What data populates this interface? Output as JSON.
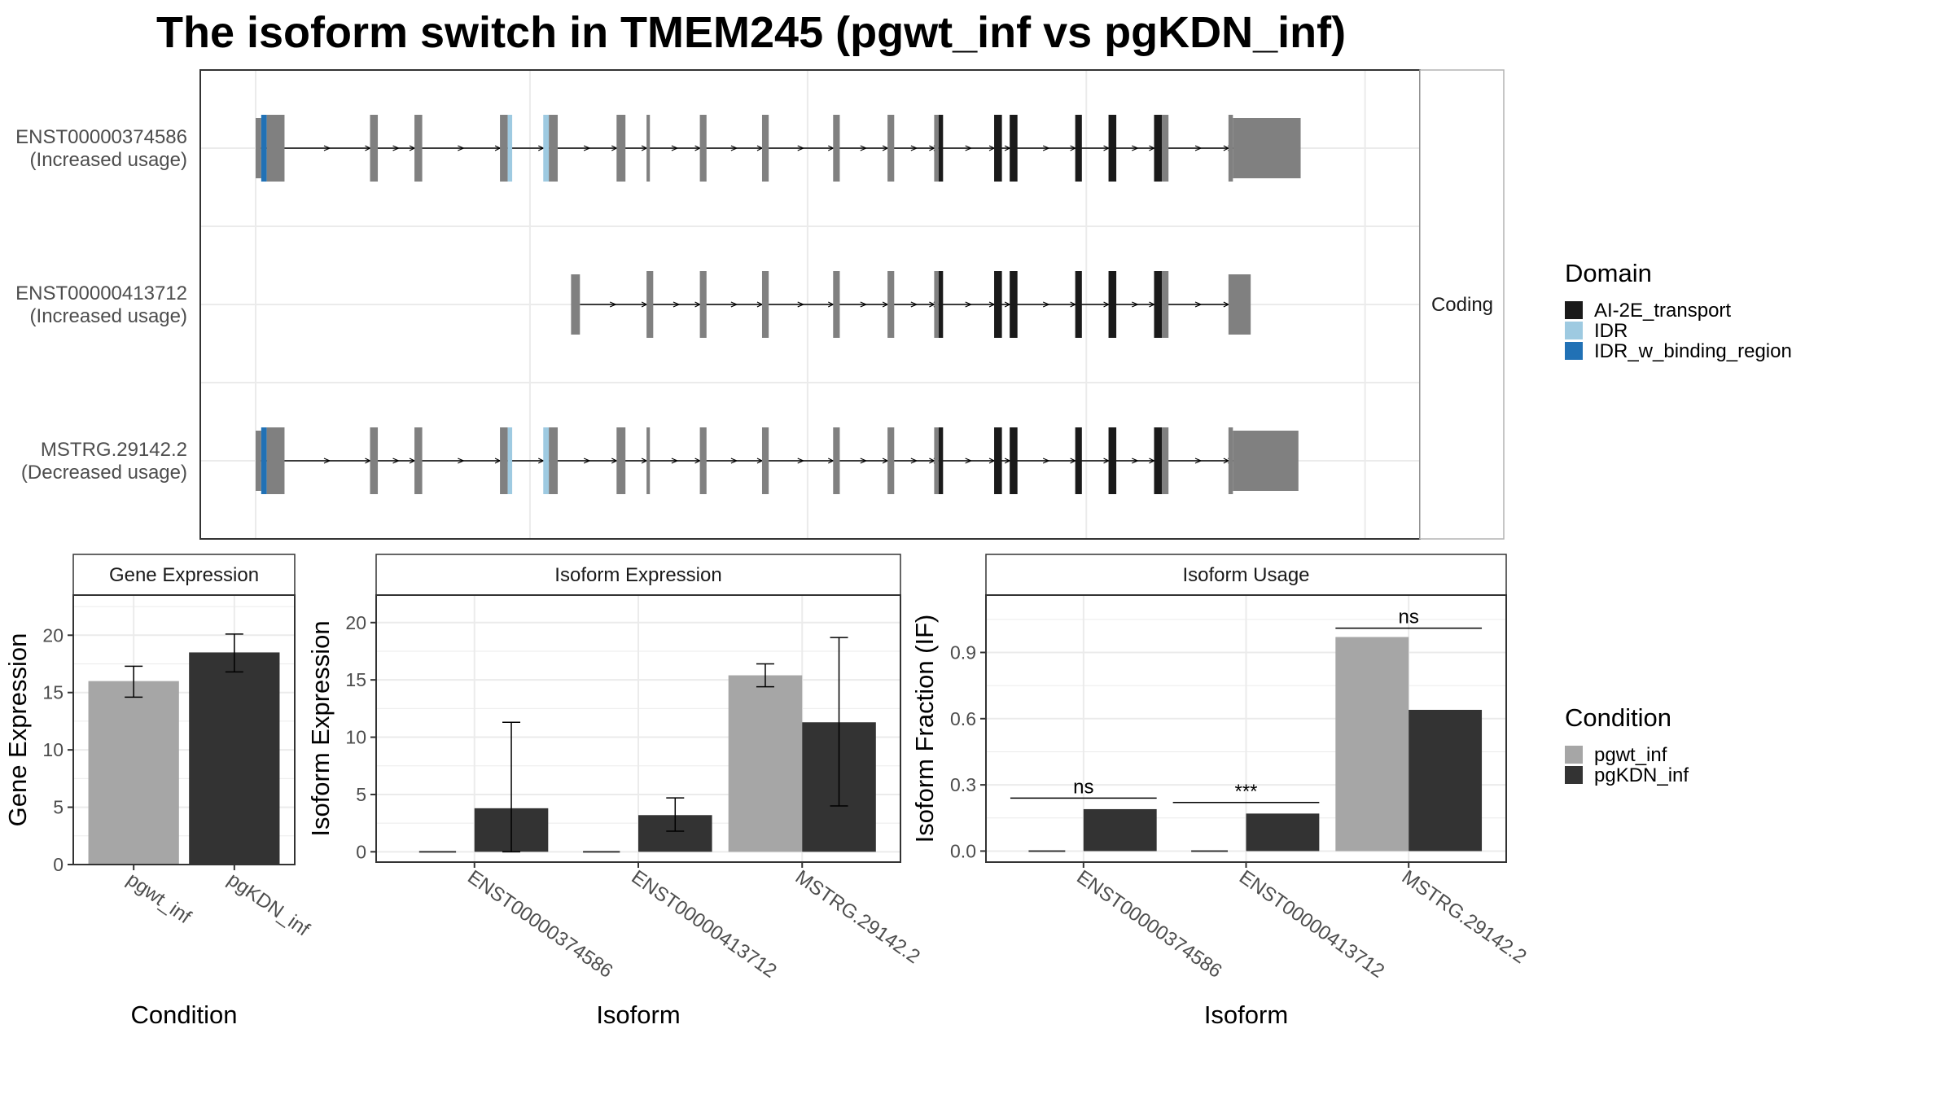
{
  "title": "The isoform switch in TMEM245 (pgwt_inf vs pgKDN_inf)",
  "colors": {
    "exon": "#808080",
    "ai2e": "#1a1a1a",
    "idr": "#9ecae1",
    "idr_binding": "#2171b5",
    "cond1": "#a6a6a6",
    "cond2": "#333333"
  },
  "structure_panel": {
    "strip_label": "Coding",
    "isoforms": [
      {
        "id": "ENST00000374586",
        "usage": "(Increased usage)",
        "exons": [
          [
            0,
            0.5,
            "exon"
          ],
          [
            0.5,
            1,
            "idr_binding"
          ],
          [
            1,
            2.6,
            "exon"
          ],
          [
            10.3,
            11,
            "exon"
          ],
          [
            14.3,
            15,
            "exon"
          ],
          [
            22,
            22.7,
            "exon"
          ],
          [
            22.7,
            23.1,
            "idr"
          ],
          [
            25.9,
            26.4,
            "idr"
          ],
          [
            26.4,
            27.2,
            "exon"
          ],
          [
            32.5,
            33.3,
            "exon"
          ],
          [
            35.2,
            35.5,
            "exon"
          ],
          [
            40,
            40.6,
            "exon"
          ],
          [
            45.6,
            46.2,
            "exon"
          ],
          [
            52,
            52.6,
            "exon"
          ],
          [
            56.9,
            57.5,
            "exon"
          ],
          [
            61.1,
            61.5,
            "exon"
          ],
          [
            61.5,
            61.9,
            "ai2e"
          ],
          [
            66.5,
            67.2,
            "ai2e"
          ],
          [
            67.9,
            68.6,
            "ai2e"
          ],
          [
            73.8,
            74.4,
            "ai2e"
          ],
          [
            76.8,
            77.5,
            "ai2e"
          ],
          [
            80.9,
            81.6,
            "ai2e"
          ],
          [
            81.6,
            82.2,
            "exon"
          ],
          [
            87.6,
            88,
            "exon"
          ],
          [
            88,
            94.1,
            "exon_utr"
          ]
        ]
      },
      {
        "id": "ENST00000413712",
        "usage": "(Increased usage)",
        "exons": [
          [
            28.4,
            29.2,
            "exon_small"
          ],
          [
            35.2,
            35.8,
            "exon"
          ],
          [
            40,
            40.6,
            "exon"
          ],
          [
            45.6,
            46.2,
            "exon"
          ],
          [
            52,
            52.6,
            "exon"
          ],
          [
            56.9,
            57.5,
            "exon"
          ],
          [
            61.1,
            61.5,
            "exon"
          ],
          [
            61.5,
            61.9,
            "ai2e"
          ],
          [
            66.5,
            67.2,
            "ai2e"
          ],
          [
            67.9,
            68.6,
            "ai2e"
          ],
          [
            73.8,
            74.4,
            "ai2e"
          ],
          [
            76.8,
            77.5,
            "ai2e"
          ],
          [
            80.9,
            81.6,
            "ai2e"
          ],
          [
            81.6,
            82.2,
            "exon"
          ],
          [
            87.6,
            89.6,
            "exon_small"
          ]
        ]
      },
      {
        "id": "MSTRG.29142.2",
        "usage": "(Decreased usage)",
        "exons": [
          [
            0,
            0.5,
            "exon"
          ],
          [
            0.5,
            1,
            "idr_binding"
          ],
          [
            1,
            2.6,
            "exon"
          ],
          [
            10.3,
            11,
            "exon"
          ],
          [
            14.3,
            15,
            "exon"
          ],
          [
            22,
            22.7,
            "exon"
          ],
          [
            22.7,
            23.1,
            "idr"
          ],
          [
            25.9,
            26.4,
            "idr"
          ],
          [
            26.4,
            27.2,
            "exon"
          ],
          [
            32.5,
            33.3,
            "exon"
          ],
          [
            35.2,
            35.5,
            "exon"
          ],
          [
            40,
            40.6,
            "exon"
          ],
          [
            45.6,
            46.2,
            "exon"
          ],
          [
            52,
            52.6,
            "exon"
          ],
          [
            56.9,
            57.5,
            "exon"
          ],
          [
            61.1,
            61.5,
            "exon"
          ],
          [
            61.5,
            61.9,
            "ai2e"
          ],
          [
            66.5,
            67.2,
            "ai2e"
          ],
          [
            67.9,
            68.6,
            "ai2e"
          ],
          [
            73.8,
            74.4,
            "ai2e"
          ],
          [
            76.8,
            77.5,
            "ai2e"
          ],
          [
            80.9,
            81.6,
            "ai2e"
          ],
          [
            81.6,
            82.2,
            "exon"
          ],
          [
            87.6,
            88,
            "exon"
          ],
          [
            88,
            93.9,
            "exon_utr"
          ]
        ]
      }
    ]
  },
  "domain_legend": {
    "title": "Domain",
    "entries": [
      {
        "label": "AI-2E_transport",
        "color_key": "ai2e"
      },
      {
        "label": "IDR",
        "color_key": "idr"
      },
      {
        "label": "IDR_w_binding_region",
        "color_key": "idr_binding"
      }
    ]
  },
  "condition_legend": {
    "title": "Condition",
    "entries": [
      {
        "label": "pgwt_inf",
        "color_key": "cond1"
      },
      {
        "label": "pgKDN_inf",
        "color_key": "cond2"
      }
    ]
  },
  "chart_data": [
    {
      "type": "bar",
      "panel": "Gene Expression",
      "xlabel": "Condition",
      "ylabel": "Gene Expression",
      "categories": [
        "pgwt_inf",
        "pgKDN_inf"
      ],
      "values": [
        16.0,
        18.5
      ],
      "err_low": [
        14.6,
        16.8
      ],
      "err_high": [
        17.3,
        20.1
      ],
      "ylim": [
        0,
        23.5
      ],
      "yticks": [
        0,
        5,
        10,
        15,
        20
      ]
    },
    {
      "type": "bar",
      "panel": "Isoform Expression",
      "xlabel": "Isoform",
      "ylabel": "Isoform Expression",
      "categories": [
        "ENST00000374586",
        "ENST00000413712",
        "MSTRG.29142.2"
      ],
      "series": [
        {
          "name": "pgwt_inf",
          "values": [
            0,
            0,
            15.4
          ],
          "err_low": [
            0,
            0,
            14.4
          ],
          "err_high": [
            0,
            0,
            16.4
          ]
        },
        {
          "name": "pgKDN_inf",
          "values": [
            3.8,
            3.2,
            11.3
          ],
          "err_low": [
            0.0,
            1.8,
            4.0
          ],
          "err_high": [
            11.3,
            4.7,
            18.7
          ]
        }
      ],
      "ylim": [
        -0.9,
        22.4
      ],
      "yticks": [
        0,
        5,
        10,
        15,
        20
      ]
    },
    {
      "type": "bar",
      "panel": "Isoform Usage",
      "xlabel": "Isoform",
      "ylabel": "Isoform Fraction (IF)",
      "categories": [
        "ENST00000374586",
        "ENST00000413712",
        "MSTRG.29142.2"
      ],
      "series": [
        {
          "name": "pgwt_inf",
          "values": [
            0,
            0,
            0.97
          ]
        },
        {
          "name": "pgKDN_inf",
          "values": [
            0.19,
            0.17,
            0.64
          ]
        }
      ],
      "significance": [
        "ns",
        "***",
        "ns"
      ],
      "sig_y": [
        0.24,
        0.22,
        1.01
      ],
      "ylim": [
        -0.05,
        1.16
      ],
      "yticks": [
        0.0,
        0.3,
        0.6,
        0.9
      ],
      "ytick_labels": [
        "0.0",
        "0.3",
        "0.6",
        "0.9"
      ]
    }
  ]
}
